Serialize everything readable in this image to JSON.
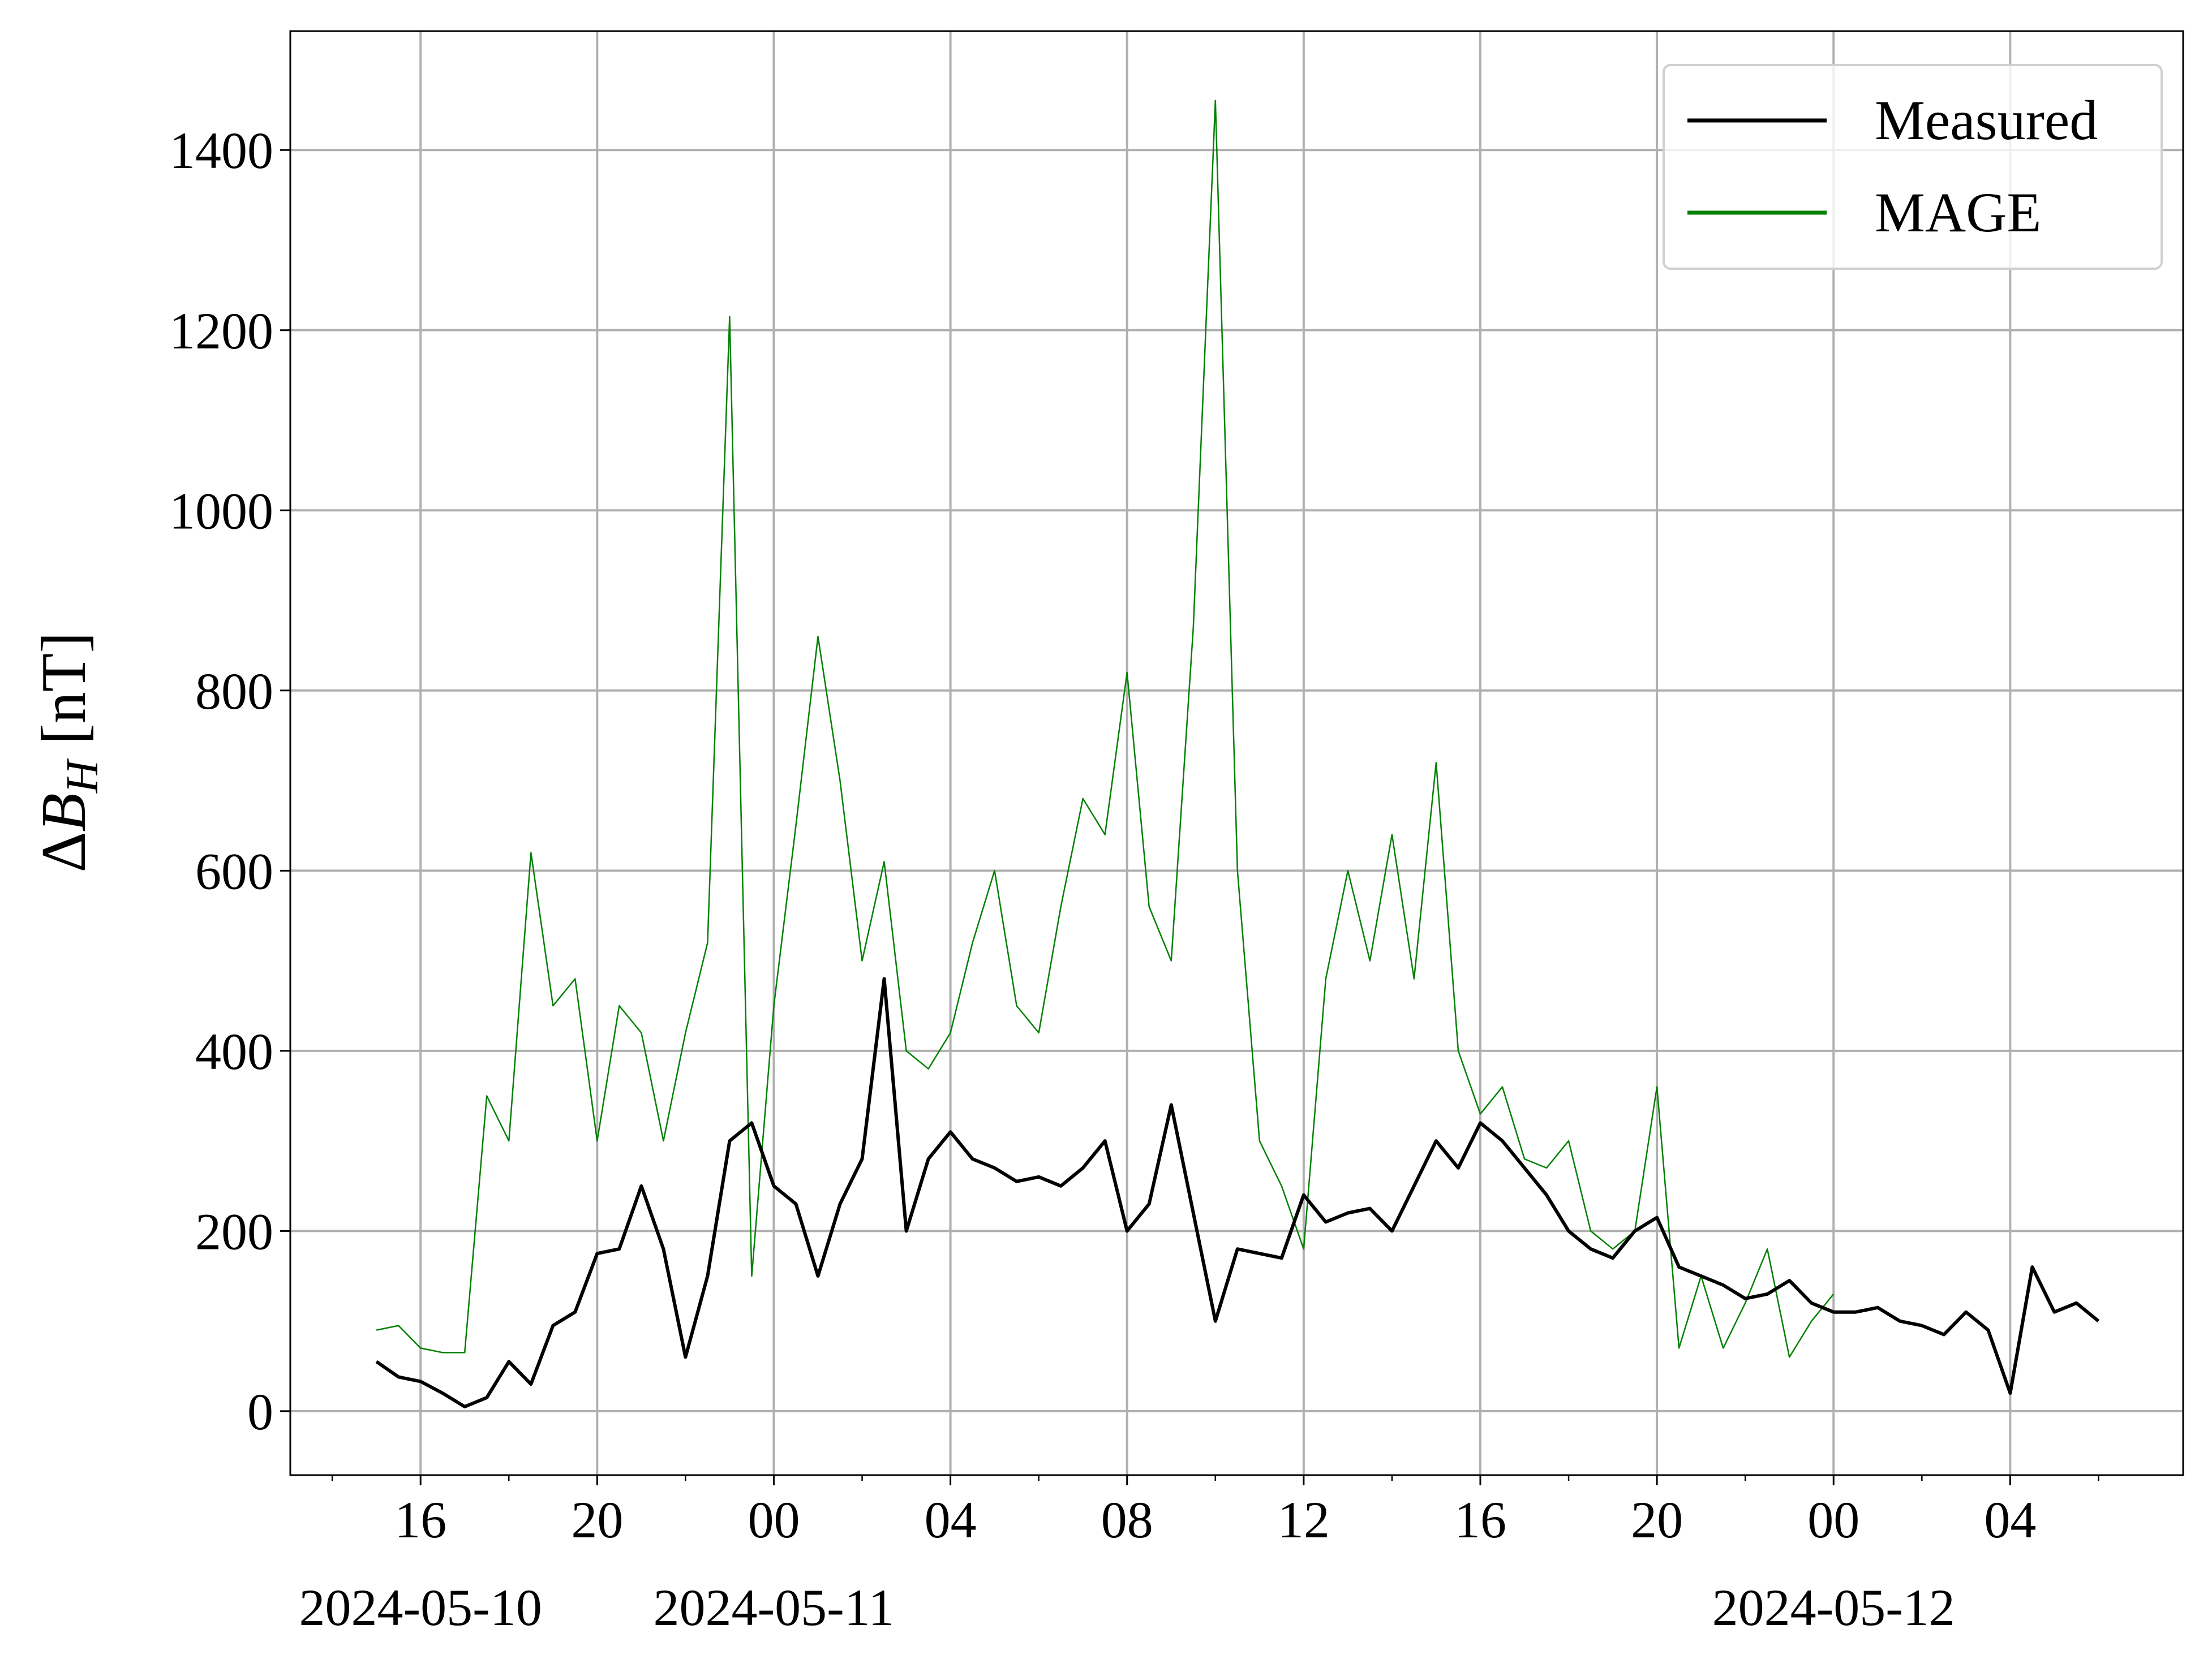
{
  "chart_data": {
    "type": "line",
    "ylabel": [
      "Δ",
      "B",
      "H",
      " [nT]"
    ],
    "xlim": [
      "2024-05-10 13:03",
      "2024-05-12 07:55"
    ],
    "ylim": [
      -71,
      1532
    ],
    "yticks": [
      0,
      200,
      400,
      600,
      800,
      1000,
      1200,
      1400
    ],
    "xticks": [
      {
        "value": "2024-05-10 16:00",
        "label": "16"
      },
      {
        "value": "2024-05-10 20:00",
        "label": "20"
      },
      {
        "value": "2024-05-11 00:00",
        "label": "00"
      },
      {
        "value": "2024-05-11 04:00",
        "label": "04"
      },
      {
        "value": "2024-05-11 08:00",
        "label": "08"
      },
      {
        "value": "2024-05-11 12:00",
        "label": "12"
      },
      {
        "value": "2024-05-11 16:00",
        "label": "16"
      },
      {
        "value": "2024-05-11 20:00",
        "label": "20"
      },
      {
        "value": "2024-05-12 00:00",
        "label": "00"
      },
      {
        "value": "2024-05-12 04:00",
        "label": "04"
      }
    ],
    "xtick_dates": [
      {
        "value": "2024-05-10 16:00",
        "label": "2024-05-10"
      },
      {
        "value": "2024-05-11 00:00",
        "label": "2024-05-11"
      },
      {
        "value": "2024-05-12 00:00",
        "label": "2024-05-12"
      }
    ],
    "xminorticks": [
      "2024-05-10 14:00",
      "2024-05-10 18:00",
      "2024-05-10 22:00",
      "2024-05-11 02:00",
      "2024-05-11 06:00",
      "2024-05-11 10:00",
      "2024-05-11 14:00",
      "2024-05-11 18:00",
      "2024-05-11 22:00",
      "2024-05-12 02:00",
      "2024-05-12 06:00"
    ],
    "grid": true,
    "legend": "upper right",
    "series": [
      {
        "name": "Measured",
        "color": "#000000",
        "x": [
          "2024-05-10 15:00",
          "2024-05-10 15:30",
          "2024-05-10 16:00",
          "2024-05-10 16:30",
          "2024-05-10 17:00",
          "2024-05-10 17:30",
          "2024-05-10 18:00",
          "2024-05-10 18:30",
          "2024-05-10 19:00",
          "2024-05-10 19:30",
          "2024-05-10 20:00",
          "2024-05-10 20:30",
          "2024-05-10 21:00",
          "2024-05-10 21:30",
          "2024-05-10 22:00",
          "2024-05-10 22:30",
          "2024-05-10 23:00",
          "2024-05-10 23:30",
          "2024-05-11 00:00",
          "2024-05-11 00:30",
          "2024-05-11 01:00",
          "2024-05-11 01:30",
          "2024-05-11 02:00",
          "2024-05-11 02:30",
          "2024-05-11 03:00",
          "2024-05-11 03:30",
          "2024-05-11 04:00",
          "2024-05-11 04:30",
          "2024-05-11 05:00",
          "2024-05-11 05:30",
          "2024-05-11 06:00",
          "2024-05-11 06:30",
          "2024-05-11 07:00",
          "2024-05-11 07:30",
          "2024-05-11 08:00",
          "2024-05-11 08:30",
          "2024-05-11 09:00",
          "2024-05-11 09:30",
          "2024-05-11 10:00",
          "2024-05-11 10:30",
          "2024-05-11 11:00",
          "2024-05-11 11:30",
          "2024-05-11 12:00",
          "2024-05-11 12:30",
          "2024-05-11 13:00",
          "2024-05-11 13:30",
          "2024-05-11 14:00",
          "2024-05-11 14:30",
          "2024-05-11 15:00",
          "2024-05-11 15:30",
          "2024-05-11 16:00",
          "2024-05-11 16:30",
          "2024-05-11 17:00",
          "2024-05-11 17:30",
          "2024-05-11 18:00",
          "2024-05-11 18:30",
          "2024-05-11 19:00",
          "2024-05-11 19:30",
          "2024-05-11 20:00",
          "2024-05-11 20:30",
          "2024-05-11 21:00",
          "2024-05-11 21:30",
          "2024-05-11 22:00",
          "2024-05-11 22:30",
          "2024-05-11 23:00",
          "2024-05-11 23:30",
          "2024-05-12 00:00",
          "2024-05-12 00:30",
          "2024-05-12 01:00",
          "2024-05-12 01:30",
          "2024-05-12 02:00",
          "2024-05-12 02:30",
          "2024-05-12 03:00",
          "2024-05-12 03:30",
          "2024-05-12 04:00",
          "2024-05-12 04:30",
          "2024-05-12 05:00",
          "2024-05-12 05:30",
          "2024-05-12 06:00"
        ],
        "values": [
          55,
          38,
          33,
          20,
          5,
          15,
          55,
          30,
          95,
          110,
          175,
          180,
          250,
          180,
          60,
          150,
          300,
          320,
          250,
          230,
          150,
          230,
          280,
          480,
          200,
          280,
          310,
          280,
          270,
          255,
          260,
          250,
          270,
          300,
          200,
          230,
          340,
          220,
          100,
          180,
          175,
          170,
          240,
          210,
          220,
          225,
          200,
          250,
          300,
          270,
          320,
          300,
          270,
          240,
          200,
          180,
          170,
          200,
          215,
          160,
          150,
          140,
          125,
          130,
          145,
          120,
          110,
          110,
          115,
          100,
          95,
          85,
          110,
          90,
          20,
          160,
          110,
          120,
          100
        ]
      },
      {
        "name": "MAGE",
        "color": "#008000",
        "x": [
          "2024-05-10 15:00",
          "2024-05-10 15:30",
          "2024-05-10 16:00",
          "2024-05-10 16:30",
          "2024-05-10 17:00",
          "2024-05-10 17:30",
          "2024-05-10 18:00",
          "2024-05-10 18:30",
          "2024-05-10 19:00",
          "2024-05-10 19:30",
          "2024-05-10 20:00",
          "2024-05-10 20:30",
          "2024-05-10 21:00",
          "2024-05-10 21:30",
          "2024-05-10 22:00",
          "2024-05-10 22:30",
          "2024-05-10 23:00",
          "2024-05-10 23:30",
          "2024-05-11 00:00",
          "2024-05-11 00:30",
          "2024-05-11 01:00",
          "2024-05-11 01:30",
          "2024-05-11 02:00",
          "2024-05-11 02:30",
          "2024-05-11 03:00",
          "2024-05-11 03:30",
          "2024-05-11 04:00",
          "2024-05-11 04:30",
          "2024-05-11 05:00",
          "2024-05-11 05:30",
          "2024-05-11 06:00",
          "2024-05-11 06:30",
          "2024-05-11 07:00",
          "2024-05-11 07:30",
          "2024-05-11 08:00",
          "2024-05-11 08:30",
          "2024-05-11 09:00",
          "2024-05-11 09:30",
          "2024-05-11 10:00",
          "2024-05-11 10:30",
          "2024-05-11 11:00",
          "2024-05-11 11:30",
          "2024-05-11 12:00",
          "2024-05-11 12:30",
          "2024-05-11 13:00",
          "2024-05-11 13:30",
          "2024-05-11 14:00",
          "2024-05-11 14:30",
          "2024-05-11 15:00",
          "2024-05-11 15:30",
          "2024-05-11 16:00",
          "2024-05-11 16:30",
          "2024-05-11 17:00",
          "2024-05-11 17:30",
          "2024-05-11 18:00",
          "2024-05-11 18:30",
          "2024-05-11 19:00",
          "2024-05-11 19:30",
          "2024-05-11 20:00",
          "2024-05-11 20:30",
          "2024-05-11 21:00",
          "2024-05-11 21:30",
          "2024-05-11 22:00",
          "2024-05-11 22:30",
          "2024-05-11 23:00",
          "2024-05-11 23:30",
          "2024-05-12 00:00"
        ],
        "values": [
          90,
          95,
          70,
          65,
          65,
          350,
          300,
          620,
          450,
          480,
          300,
          450,
          420,
          300,
          420,
          520,
          1215,
          150,
          450,
          650,
          860,
          700,
          500,
          610,
          400,
          380,
          420,
          520,
          600,
          450,
          420,
          560,
          680,
          640,
          820,
          560,
          500,
          870,
          1455,
          600,
          300,
          250,
          180,
          480,
          600,
          500,
          640,
          480,
          720,
          400,
          330,
          360,
          280,
          270,
          300,
          200,
          180,
          200,
          360,
          70,
          150,
          70,
          120,
          180,
          60,
          100,
          130
        ]
      }
    ]
  }
}
